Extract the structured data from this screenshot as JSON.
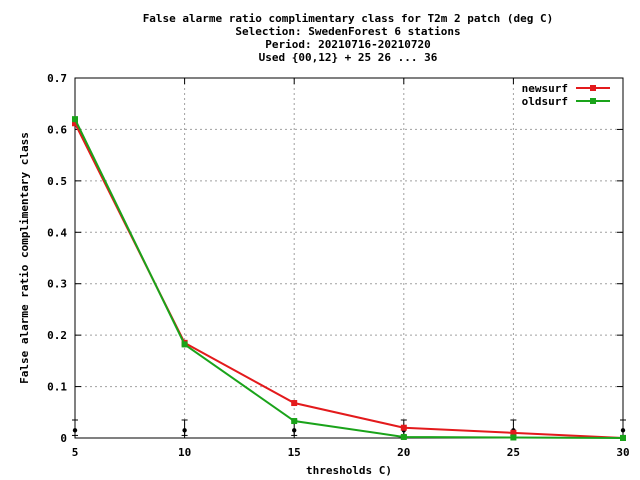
{
  "chart_data": {
    "type": "line",
    "title_lines": [
      "False alarme ratio complimentary class  for T2m 2 patch (deg C)",
      "Selection: SwedenForest      6 stations",
      "Period: 20210716-20210720",
      "Used {00,12} + 25 26 ... 36"
    ],
    "xlabel": "thresholds C)",
    "ylabel": "False alarme ratio complimentary class",
    "xlim": [
      5,
      30
    ],
    "ylim": [
      0,
      0.7
    ],
    "x_ticks": [
      5,
      10,
      15,
      20,
      25,
      30
    ],
    "y_ticks": [
      0,
      0.1,
      0.2,
      0.3,
      0.4,
      0.5,
      0.6,
      0.7
    ],
    "y_tick_labels": [
      "0",
      "0.1",
      "0.2",
      "0.3",
      "0.4",
      "0.5",
      "0.6",
      "0.7"
    ],
    "grid": true,
    "legend_position": "top-right",
    "x": [
      5,
      10,
      15,
      20,
      25,
      30
    ],
    "series": [
      {
        "name": "newsurf",
        "color": "#e31a1c",
        "values": [
          0.612,
          0.185,
          0.068,
          0.02,
          0.01,
          0.0
        ]
      },
      {
        "name": "oldsurf",
        "color": "#1aa31a",
        "values": [
          0.62,
          0.182,
          0.033,
          0.002,
          0.001,
          0.0
        ]
      }
    ],
    "error_bars": {
      "x": [
        5,
        10,
        15,
        20,
        25,
        30
      ],
      "center": [
        0.015,
        0.015,
        0.015,
        0.015,
        0.015,
        0.015
      ],
      "low": [
        0.005,
        0.005,
        0.005,
        0.005,
        0.005,
        0.005
      ],
      "high": [
        0.035,
        0.035,
        0.035,
        0.035,
        0.035,
        0.035
      ]
    }
  }
}
